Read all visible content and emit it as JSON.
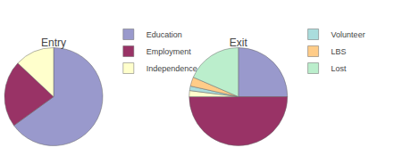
{
  "chart_data": [
    {
      "type": "pie",
      "title": "Entry",
      "categories": [
        "Education",
        "Employment",
        "Independence"
      ],
      "values": [
        65,
        22,
        13
      ],
      "colors": [
        "#9999cc",
        "#993366",
        "#ffffcc"
      ],
      "legend": "right"
    },
    {
      "type": "pie",
      "title": "Exit",
      "categories": [
        "Education",
        "Employment",
        "Independence",
        "Volunteer",
        "LBS",
        "Lost"
      ],
      "values": [
        25,
        50,
        2,
        1.5,
        3,
        18.5
      ],
      "colors": [
        "#9999cc",
        "#993366",
        "#ffffcc",
        "#aadddd",
        "#ffcc88",
        "#bbeecc"
      ],
      "legend": "right"
    }
  ]
}
